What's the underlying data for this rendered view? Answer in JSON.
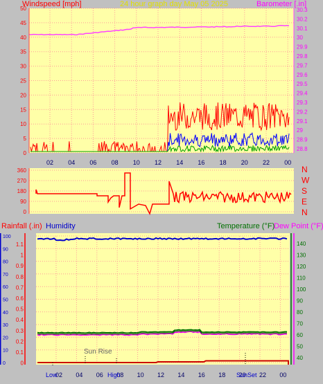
{
  "header": {
    "left_title": "Windspeed [mph]",
    "center_title": "24 hour graph day   May 05 2025",
    "right_title": "Barometer [.in]"
  },
  "wind_panel": {
    "y_ticks": [
      "50",
      "45",
      "40",
      "35",
      "30",
      "25",
      "20",
      "15",
      "10",
      "5",
      "0"
    ],
    "baro_ticks": [
      "30.3",
      "30.2",
      "30.1",
      "30",
      "29.9",
      "29.8",
      "29.7",
      "29.6",
      "29.5",
      "29.4",
      "29.3",
      "29.2",
      "29.1",
      "29",
      "28.9",
      "28.8"
    ],
    "x_ticks": [
      "02",
      "04",
      "06",
      "08",
      "10",
      "12",
      "14",
      "16",
      "18",
      "20",
      "22",
      "00"
    ]
  },
  "dir_panel": {
    "y_ticks": [
      "360",
      "270",
      "180",
      "90",
      "0"
    ],
    "compass": [
      "N",
      "W",
      "S",
      "E",
      "N"
    ]
  },
  "bottom_panel": {
    "left_title": "Rainfall (.in)",
    "humidity_title": "Humidity",
    "temp_title": "Temperature (°F)",
    "dew_title": "Dew Point (°F)",
    "hum_ticks": [
      "100",
      "90",
      "80",
      "70",
      "60",
      "50",
      "40",
      "30",
      "20",
      "10",
      "0"
    ],
    "rain_ticks": [
      "1.1",
      "1",
      "0.9",
      "0.8",
      "0.7",
      "0.6",
      "0.5",
      "0.4",
      "0.3",
      "0.2",
      "0.1",
      "0"
    ],
    "temp_ticks": [
      "140",
      "130",
      "120",
      "110",
      "100",
      "90",
      "80",
      "70",
      "60",
      "50",
      "40"
    ],
    "x_ticks": [
      "02",
      "04",
      "06",
      "08",
      "10",
      "12",
      "14",
      "16",
      "18",
      "20",
      "22",
      "00"
    ],
    "markers": {
      "sunrise": "Sun Rise",
      "low": "Low",
      "high": "High",
      "sunset": "SunSet"
    }
  },
  "colors": {
    "plot_bg": "#ffffa8",
    "grid": "#ff8888",
    "wind": "#ff0000",
    "gust": "#0000ff",
    "avg": "#00a000",
    "baro": "#ff44ff",
    "humidity": "#0000cc",
    "temp": "#007000",
    "dew": "#ff00ff",
    "rain": "#cc0000"
  }
}
